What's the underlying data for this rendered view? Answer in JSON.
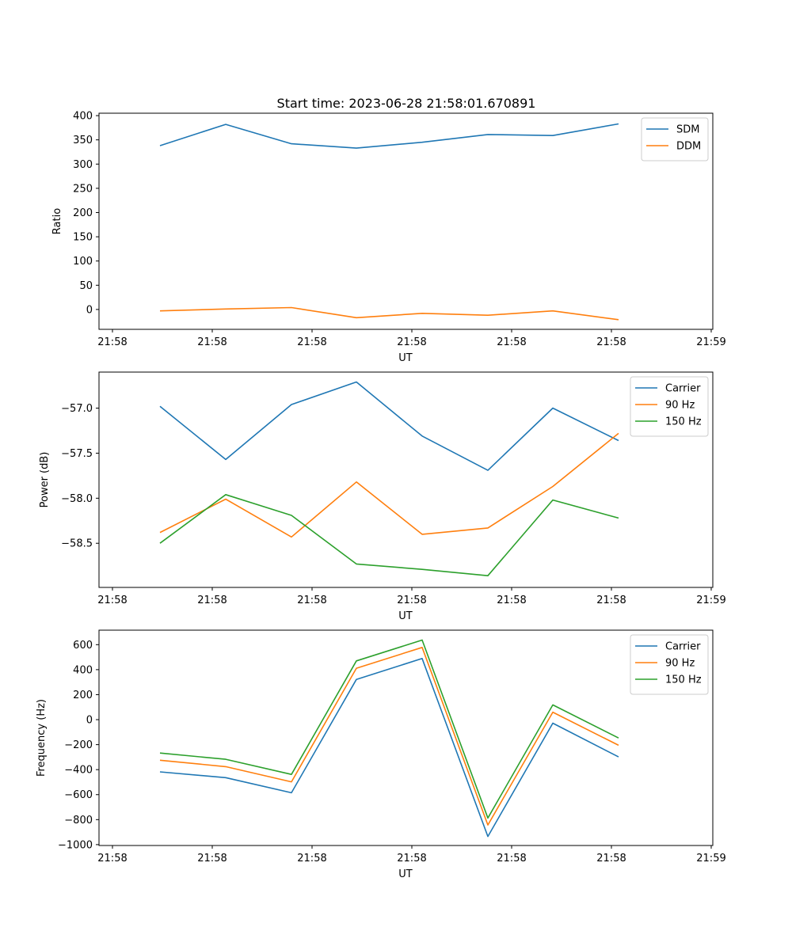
{
  "figure": {
    "title": "Start time: 2023-06-28 21:58:01.670891"
  },
  "colors": {
    "blue": "#1f77b4",
    "orange": "#ff7f0e",
    "green": "#2ca02c"
  },
  "chart_data": [
    {
      "type": "line",
      "xlabel": "UT",
      "ylabel": "Ratio",
      "xticklabels": [
        "21:58",
        "21:58",
        "21:58",
        "21:58",
        "21:58",
        "21:58",
        "21:58",
        "21:59"
      ],
      "yticks": [
        0,
        50,
        100,
        150,
        200,
        250,
        300,
        350,
        400
      ],
      "yticklabels": [
        "0",
        "50",
        "100",
        "150",
        "200",
        "250",
        "300",
        "350",
        "400"
      ],
      "ylim": [
        -41,
        405
      ],
      "legend": "top-right",
      "series": [
        {
          "name": "SDM",
          "color": "#1f77b4",
          "values": [
            338,
            382,
            342,
            333,
            345,
            361,
            359,
            383
          ]
        },
        {
          "name": "DDM",
          "color": "#ff7f0e",
          "values": [
            -3,
            1,
            4,
            -17,
            -8,
            -12,
            -3,
            -21
          ]
        }
      ]
    },
    {
      "type": "line",
      "xlabel": "UT",
      "ylabel": "Power (dB)",
      "xticklabels": [
        "21:58",
        "21:58",
        "21:58",
        "21:58",
        "21:58",
        "21:58",
        "21:58",
        "21:59"
      ],
      "yticks": [
        -58.5,
        -58.0,
        -57.5,
        -57.0
      ],
      "yticklabels": [
        "−58.5",
        "−58.0",
        "−57.5",
        "−57.0"
      ],
      "ylim": [
        -58.99,
        -56.6
      ],
      "legend": "top-right",
      "series": [
        {
          "name": "Carrier",
          "color": "#1f77b4",
          "values": [
            -56.98,
            -57.57,
            -56.96,
            -56.71,
            -57.31,
            -57.69,
            -57.0,
            -57.36
          ]
        },
        {
          "name": "90 Hz",
          "color": "#ff7f0e",
          "values": [
            -58.38,
            -58.01,
            -58.43,
            -57.82,
            -58.4,
            -58.33,
            -57.87,
            -57.28
          ]
        },
        {
          "name": "150 Hz",
          "color": "#2ca02c",
          "values": [
            -58.5,
            -57.96,
            -58.19,
            -58.73,
            -58.79,
            -58.86,
            -58.02,
            -58.22
          ]
        }
      ]
    },
    {
      "type": "line",
      "xlabel": "UT",
      "ylabel": "Frequency (Hz)",
      "xticklabels": [
        "21:58",
        "21:58",
        "21:58",
        "21:58",
        "21:58",
        "21:58",
        "21:58",
        "21:59"
      ],
      "yticks": [
        -1000,
        -800,
        -600,
        -400,
        -200,
        0,
        200,
        400,
        600
      ],
      "yticklabels": [
        "−1000",
        "−800",
        "−600",
        "−400",
        "−200",
        "0",
        "200",
        "400",
        "600"
      ],
      "ylim": [
        -1007,
        716
      ],
      "legend": "top-right",
      "series": [
        {
          "name": "Carrier",
          "color": "#1f77b4",
          "values": [
            -418,
            -464,
            -585,
            322,
            489,
            -935,
            -28,
            -298
          ]
        },
        {
          "name": "90 Hz",
          "color": "#ff7f0e",
          "values": [
            -325,
            -376,
            -498,
            411,
            578,
            -843,
            60,
            -205
          ]
        },
        {
          "name": "150 Hz",
          "color": "#2ca02c",
          "values": [
            -267,
            -317,
            -438,
            470,
            637,
            -787,
            118,
            -147
          ]
        }
      ]
    }
  ]
}
